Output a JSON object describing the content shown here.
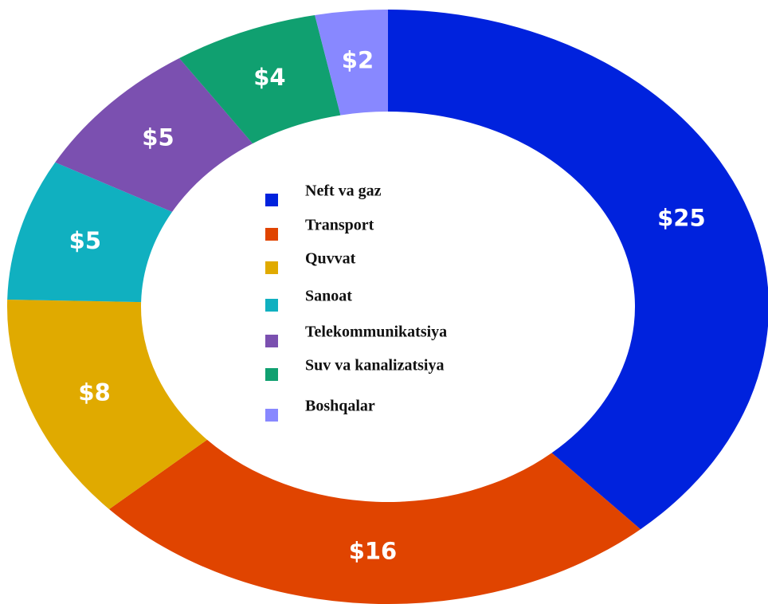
{
  "chart_data": {
    "type": "donut",
    "categories": [
      "Neft va gaz",
      "Transport",
      "Quvvat",
      "Sanoat",
      "Telekommunikatsiya",
      "Suv va kanalizatsiya",
      "Boshqalar"
    ],
    "values": [
      25,
      16,
      8,
      5,
      5,
      4,
      2
    ],
    "value_labels": [
      "$25",
      "$16",
      "$8",
      "$5",
      "$5",
      "$4",
      "$2"
    ],
    "colors": [
      "#0022dd",
      "#e04400",
      "#e0aa00",
      "#10b0c0",
      "#7b50b0",
      "#10a070",
      "#8888ff"
    ]
  }
}
